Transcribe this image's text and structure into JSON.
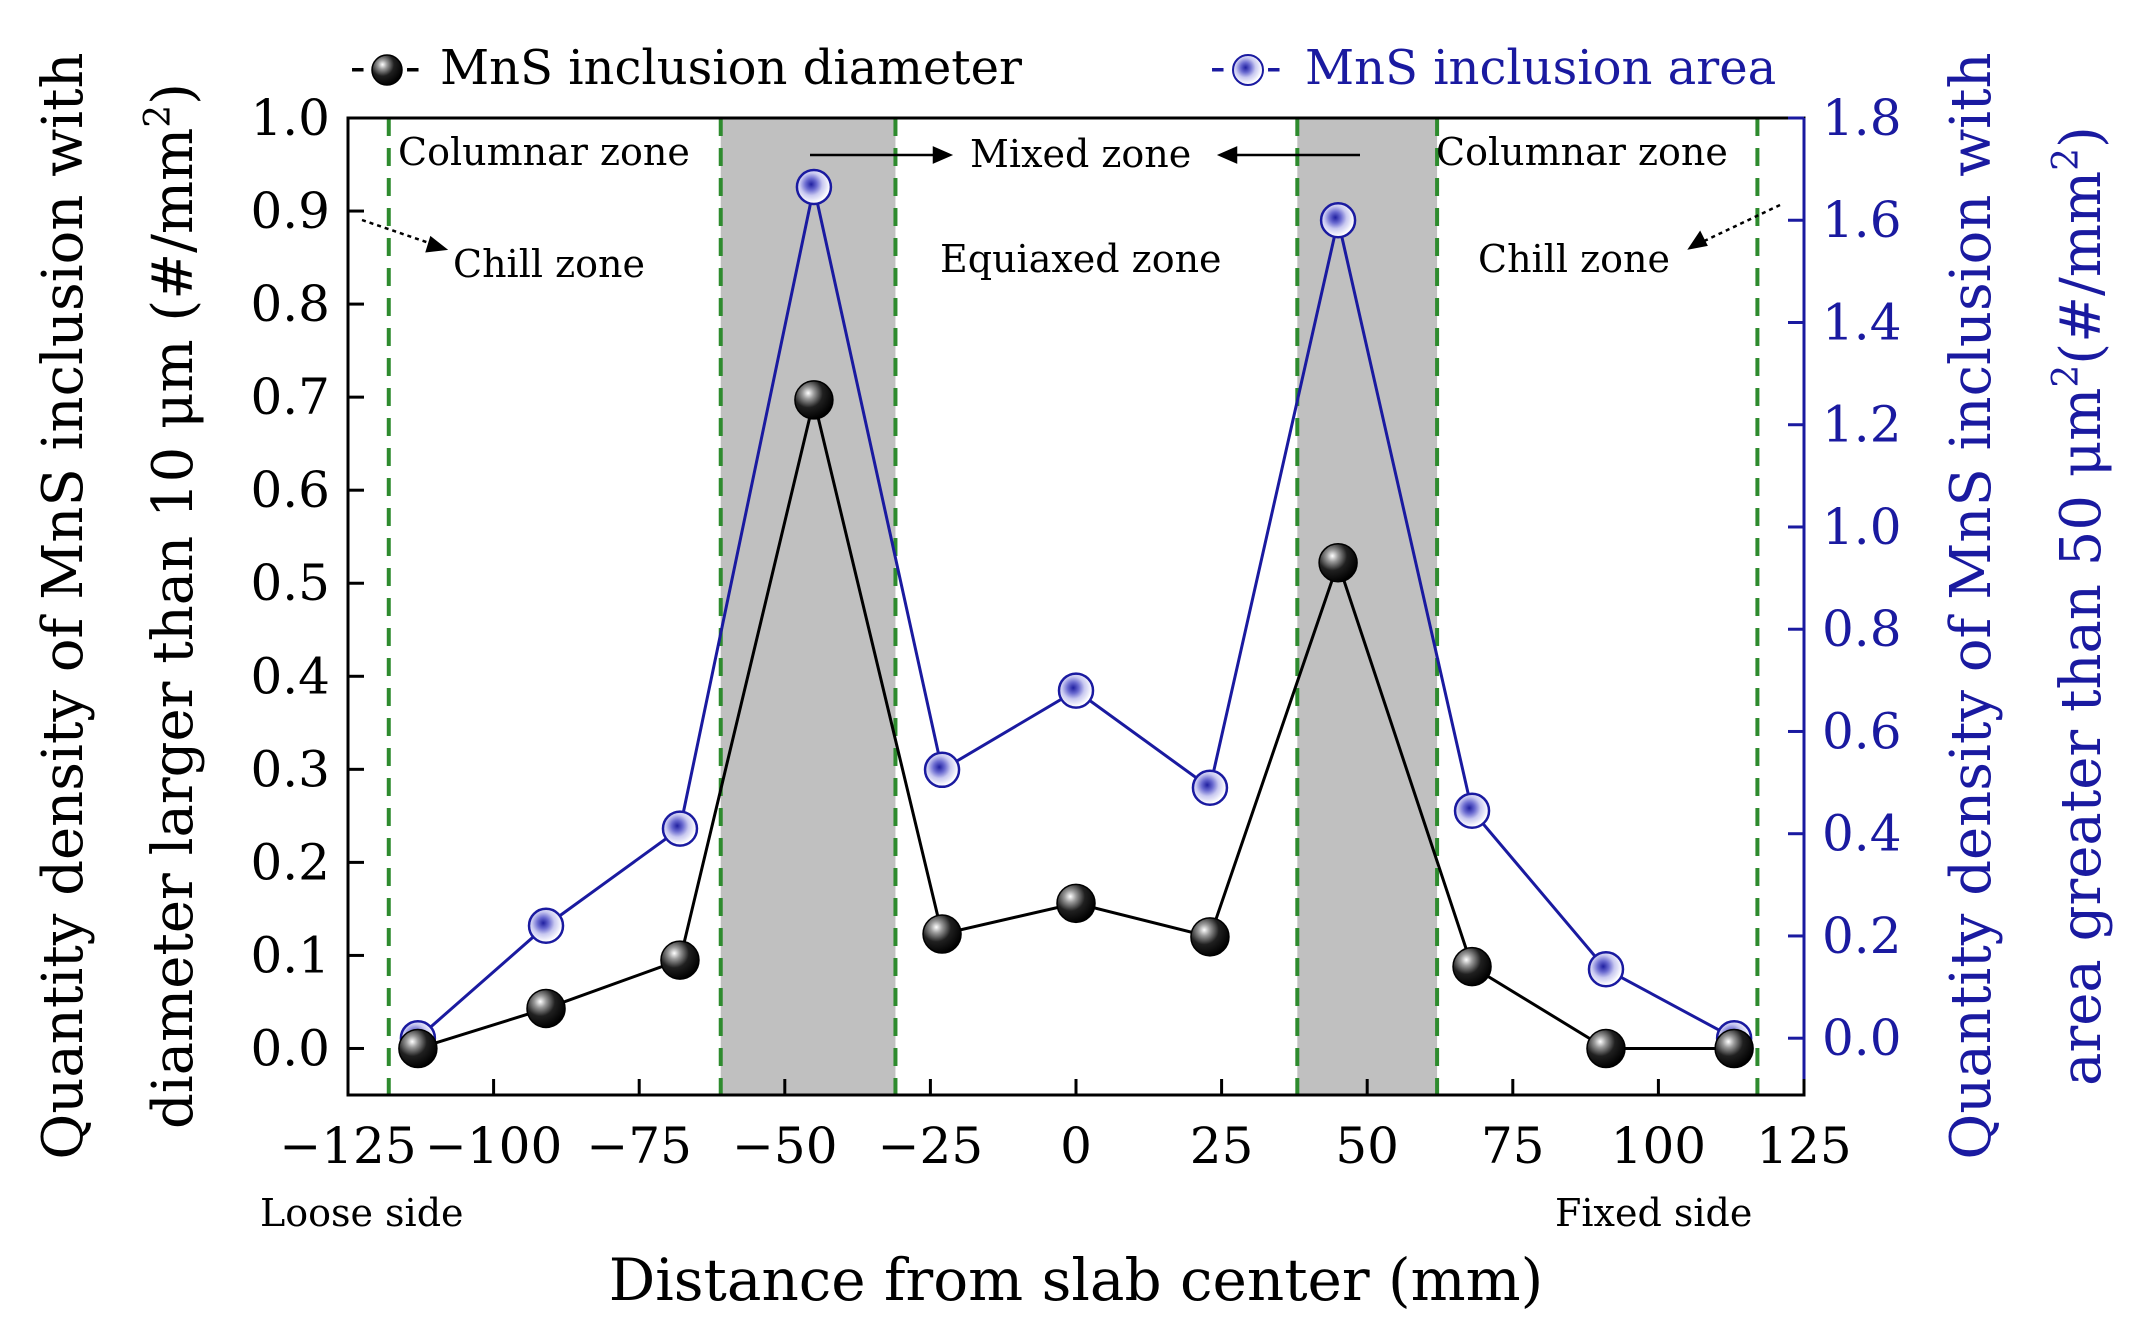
{
  "chart_data": {
    "type": "line",
    "x": [
      -113,
      -91,
      -68,
      -45,
      -23,
      0,
      23,
      45,
      68,
      91,
      113
    ],
    "xlabel": "Distance from slab center (mm)",
    "xlim": [
      -125,
      125
    ],
    "xticks": [
      -125,
      -100,
      -75,
      -50,
      -25,
      0,
      25,
      50,
      75,
      100,
      125
    ],
    "xtick_labels": [
      "−125",
      "−100",
      "−75",
      "−50",
      "−25",
      "0",
      "25",
      "50",
      "75",
      "100",
      "125"
    ],
    "y_left": {
      "label_line1": "Quantity density of MnS inclusion with",
      "label_line2": "diameter larger than 10 μm (#/mm",
      "label_line2_sup": "2",
      "label_line2_end": ")",
      "lim": [
        -0.05,
        1.0
      ],
      "ticks": [
        0.0,
        0.1,
        0.2,
        0.3,
        0.4,
        0.5,
        0.6,
        0.7,
        0.8,
        0.9,
        1.0
      ],
      "tick_labels": [
        "0.0",
        "0.1",
        "0.2",
        "0.3",
        "0.4",
        "0.5",
        "0.6",
        "0.7",
        "0.8",
        "0.9",
        "1.0"
      ]
    },
    "y_right": {
      "label_line1": "Quantity density of MnS inclusion with",
      "label_line2": "area greater than 50 μm",
      "label_line2_sup1": "2",
      "label_line2_mid": "(#/mm",
      "label_line2_sup2": "2",
      "label_line2_end": ")",
      "lim": [
        -0.1111,
        1.8
      ],
      "ticks": [
        0.0,
        0.2,
        0.4,
        0.6,
        0.8,
        1.0,
        1.2,
        1.4,
        1.6,
        1.8
      ],
      "tick_labels": [
        "0.0",
        "0.2",
        "0.4",
        "0.6",
        "0.8",
        "1.0",
        "1.2",
        "1.4",
        "1.6",
        "1.8"
      ]
    },
    "series": [
      {
        "name": "MnS inclusion diameter",
        "axis": "left",
        "color": "#000000",
        "marker": "filled-sphere",
        "values": [
          0.0,
          0.043,
          0.095,
          0.697,
          0.123,
          0.156,
          0.12,
          0.522,
          0.088,
          0.0,
          0.0
        ]
      },
      {
        "name": "MnS inclusion area",
        "axis": "right",
        "color": "#1a1aa0",
        "marker": "open-sphere",
        "values": [
          0.0,
          0.22,
          0.41,
          1.665,
          0.525,
          0.68,
          0.49,
          1.6,
          0.445,
          0.135,
          0.0
        ]
      }
    ],
    "legend": {
      "position": "top",
      "diameter_symbol_left": "-",
      "diameter_symbol_right": "-",
      "area_symbol_left": "-",
      "area_symbol_right": "-"
    },
    "shaded_regions": [
      [
        -61,
        -31
      ],
      [
        38,
        62
      ]
    ],
    "shade_color": "#c0c0c0",
    "boundary_lines_x": [
      -118,
      -61,
      -31,
      38,
      62,
      117
    ],
    "boundary_line_color": "#2e8b2e",
    "annotations": {
      "columnar_left": "Columnar zone",
      "columnar_right": "Columnar zone",
      "mixed": "Mixed zone",
      "equiaxed": "Equiaxed zone",
      "chill_left": "Chill zone",
      "chill_right": "Chill zone",
      "loose_side": "Loose side",
      "fixed_side": "Fixed side"
    },
    "axis_colors": {
      "left": "#000000",
      "right": "#1a1aa0"
    }
  }
}
